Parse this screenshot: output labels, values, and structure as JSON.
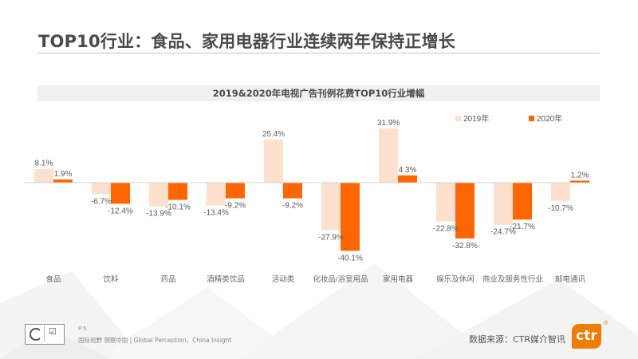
{
  "page": {
    "title": "TOP10行业：食品、家用电器行业连续两年保持正增长",
    "page_number": "P 5",
    "tagline": "国际视野 洞察中国 | Global Perception，China Insight",
    "source": "数据来源：CTR媒介智讯",
    "brand_logo_text": "ctr",
    "brand_registered_mark": "®"
  },
  "colors": {
    "series_2019": "#fde0cd",
    "series_2020": "#ff6600",
    "label": "#595959",
    "axis": "#d0d0d0",
    "brand": "#ef7d00"
  },
  "chart_data": {
    "type": "bar",
    "title": "2019&2020年电视广告刊例花费TOP10行业增幅",
    "xlabel": "",
    "ylabel": "",
    "unit": "%",
    "ylim": [
      -45,
      40
    ],
    "grid": false,
    "legend_position": "top-right",
    "categories": [
      "食品",
      "饮料",
      "药品",
      "酒精类饮品",
      "活动类",
      "化妆品/浴室用品",
      "家用电器",
      "娱乐及休闲",
      "商业及服务性行业",
      "邮电通讯"
    ],
    "series": [
      {
        "name": "2019年",
        "color": "#fde0cd",
        "values": [
          8.1,
          -6.7,
          -13.9,
          -13.4,
          25.4,
          -27.9,
          31.9,
          -22.8,
          -24.7,
          -10.7
        ]
      },
      {
        "name": "2020年",
        "color": "#ff6600",
        "values": [
          1.9,
          -12.4,
          -10.1,
          -9.2,
          -9.2,
          -40.1,
          4.3,
          -32.8,
          -21.7,
          1.2
        ]
      }
    ]
  }
}
